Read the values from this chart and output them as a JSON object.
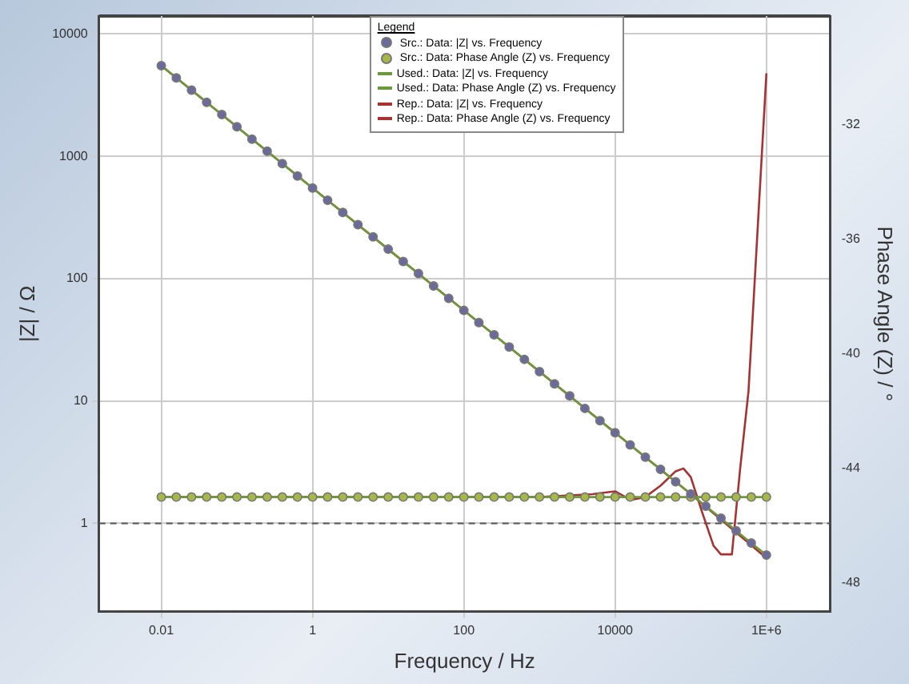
{
  "chart_data": {
    "type": "line",
    "xlabel": "Frequency / Hz",
    "ylabel": "|Z| / Ω",
    "y2label": "Phase Angle (Z) / °",
    "legend_title": "Legend",
    "x": [
      0.01,
      0.0158,
      0.0251,
      0.0398,
      0.0631,
      0.1,
      0.158,
      0.251,
      0.398,
      0.631,
      1,
      1.58,
      2.51,
      3.98,
      6.31,
      10,
      15.8,
      25.1,
      39.8,
      63.1,
      100,
      158,
      251,
      398,
      631,
      1000,
      1580,
      2510,
      3980,
      6310,
      10000,
      15800,
      25100,
      39800,
      63100,
      100000,
      158000,
      251000,
      398000,
      631000,
      1000000
    ],
    "series": [
      {
        "name": "Src.: Data: |Z| vs. Frequency",
        "type": "scatter",
        "marker": "circle",
        "color": "#6b6b9b",
        "values": [
          5500,
          4370,
          3470,
          2760,
          2190,
          1740,
          1380,
          1100,
          870,
          690,
          550,
          437,
          347,
          276,
          219,
          174,
          138,
          110,
          87,
          69,
          55,
          43.7,
          34.7,
          27.6,
          21.9,
          17.4,
          13.8,
          11,
          8.7,
          6.9,
          5.5,
          4.37,
          3.47,
          2.76,
          2.19,
          1.74,
          1.38,
          1.1,
          0.87,
          0.69,
          0.55
        ]
      },
      {
        "name": "Src.: Data: Phase Angle (Z) vs. Frequency",
        "type": "scatter",
        "marker": "circle",
        "axis": "y2",
        "color": "#a8b848",
        "values": [
          -45,
          -45,
          -45,
          -45,
          -45,
          -45,
          -45,
          -45,
          -45,
          -45,
          -45,
          -45,
          -45,
          -45,
          -45,
          -45,
          -45,
          -45,
          -45,
          -45,
          -45,
          -45,
          -45,
          -45,
          -45,
          -45,
          -45,
          -45,
          -45,
          -45,
          -45,
          -45,
          -45,
          -45,
          -45,
          -45,
          -45,
          -45,
          -45,
          -45,
          -45
        ]
      },
      {
        "name": "Used.: Data: |Z| vs. Frequency",
        "type": "line",
        "marker": "none",
        "color": "#6a9a3a",
        "values": [
          5500,
          4370,
          3470,
          2760,
          2190,
          1740,
          1380,
          1100,
          870,
          690,
          550,
          437,
          347,
          276,
          219,
          174,
          138,
          110,
          87,
          69,
          55,
          43.7,
          34.7,
          27.6,
          21.9,
          17.4,
          13.8,
          11,
          8.7,
          6.9,
          5.5,
          4.37,
          3.47,
          2.76,
          2.19,
          1.74,
          1.38,
          1.1,
          0.87,
          0.69,
          0.55
        ]
      },
      {
        "name": "Used.: Data: Phase Angle (Z) vs. Frequency",
        "type": "line",
        "marker": "none",
        "axis": "y2",
        "color": "#6a9a3a",
        "values": [
          -45,
          -45,
          -45,
          -45,
          -45,
          -45,
          -45,
          -45,
          -45,
          -45,
          -45,
          -45,
          -45,
          -45,
          -45,
          -45,
          -45,
          -45,
          -45,
          -45,
          -45,
          -45,
          -45,
          -45,
          -45,
          -45,
          -45,
          -45,
          -45,
          -45,
          -45,
          -45,
          -45,
          -45,
          -45,
          -45,
          -45,
          -45,
          -45,
          -45,
          -45
        ]
      },
      {
        "name": "Rep.: Data: |Z| vs. Frequency",
        "type": "line",
        "marker": "none",
        "color": "#a83232",
        "x": [
          0.01,
          1,
          100,
          10000,
          100000,
          1000000
        ],
        "values": [
          5500,
          550,
          55,
          5.5,
          1.74,
          0.52
        ]
      },
      {
        "name": "Rep.: Data: Phase Angle (Z) vs. Frequency",
        "type": "line",
        "marker": "none",
        "axis": "y2",
        "color": "#a83232",
        "x": [
          0.01,
          1000,
          5000,
          10000,
          16000,
          25000,
          40000,
          63000,
          80000,
          100000,
          140000,
          200000,
          250000,
          350000,
          450000,
          580000,
          1000000
        ],
        "values": [
          -45,
          -45,
          -44.9,
          -44.8,
          -45.1,
          -45,
          -44.6,
          -44.1,
          -44,
          -44.3,
          -45.5,
          -46.7,
          -47,
          -47,
          -44,
          -41.3,
          -30.2
        ]
      }
    ],
    "log": "xy",
    "xlim": [
      0.0015,
      7000000
    ],
    "xticks": [
      0.01,
      1,
      100,
      10000,
      {
        "value": 1000000,
        "label": "1E+6"
      }
    ],
    "ylim": [
      0.19,
      14000
    ],
    "yticks": [
      1,
      10,
      100,
      1000,
      10000
    ],
    "y2lim": [
      -49,
      -28.2
    ],
    "y2ticks": [
      -48,
      -44,
      -40,
      -36,
      -32
    ],
    "ref_lines": [
      {
        "axis": "y",
        "value": 1,
        "color": "#555555",
        "line_style": "dashed"
      }
    ],
    "grid": true,
    "legend": "top",
    "line_style": "solid"
  }
}
